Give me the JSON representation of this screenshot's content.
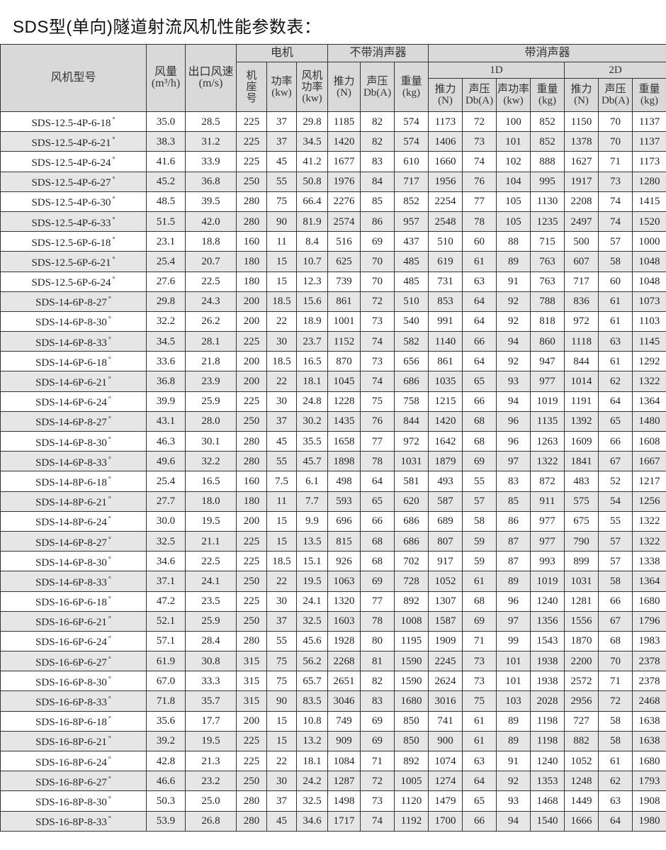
{
  "title": "SDS型(单向)隧道射流风机性能参数表：",
  "header": {
    "model": "风机型号",
    "airflow": "风量",
    "airflow_unit": "(m³/h)",
    "outlet_speed": "出口风速",
    "outlet_speed_unit": "(m/s)",
    "motor": "电机",
    "no_silencer": "不带消声器",
    "with_silencer": "带消声器",
    "frame": "机座号",
    "power": "功率",
    "power_unit": "(kw)",
    "fan_power": "风机功率",
    "fan_power_unit": "(kw)",
    "thrust": "推力",
    "thrust_unit": "(N)",
    "sound": "声压",
    "sound_unit": "Db(A)",
    "weight": "重量",
    "weight_unit": "(kg)",
    "d1": "1D",
    "d2": "2D",
    "sound_power": "声功率",
    "sound_power_unit": "(kw)"
  },
  "degree_mark": "°",
  "rows": [
    [
      "SDS-12.5-4P-6-18",
      "35.0",
      "28.5",
      "225",
      "37",
      "29.8",
      "1185",
      "82",
      "574",
      "1173",
      "72",
      "100",
      "852",
      "1150",
      "70",
      "1137"
    ],
    [
      "SDS-12.5-4P-6-21",
      "38.3",
      "31.2",
      "225",
      "37",
      "34.5",
      "1420",
      "82",
      "574",
      "1406",
      "73",
      "101",
      "852",
      "1378",
      "70",
      "1137"
    ],
    [
      "SDS-12.5-4P-6-24",
      "41.6",
      "33.9",
      "225",
      "45",
      "41.2",
      "1677",
      "83",
      "610",
      "1660",
      "74",
      "102",
      "888",
      "1627",
      "71",
      "1173"
    ],
    [
      "SDS-12.5-4P-6-27",
      "45.2",
      "36.8",
      "250",
      "55",
      "50.8",
      "1976",
      "84",
      "717",
      "1956",
      "76",
      "104",
      "995",
      "1917",
      "73",
      "1280"
    ],
    [
      "SDS-12.5-4P-6-30",
      "48.5",
      "39.5",
      "280",
      "75",
      "66.4",
      "2276",
      "85",
      "852",
      "2254",
      "77",
      "105",
      "1130",
      "2208",
      "74",
      "1415"
    ],
    [
      "SDS-12.5-4P-6-33",
      "51.5",
      "42.0",
      "280",
      "90",
      "81.9",
      "2574",
      "86",
      "957",
      "2548",
      "78",
      "105",
      "1235",
      "2497",
      "74",
      "1520"
    ],
    [
      "SDS-12.5-6P-6-18",
      "23.1",
      "18.8",
      "160",
      "11",
      "8.4",
      "516",
      "69",
      "437",
      "510",
      "60",
      "88",
      "715",
      "500",
      "57",
      "1000"
    ],
    [
      "SDS-12.5-6P-6-21",
      "25.4",
      "20.7",
      "180",
      "15",
      "10.7",
      "625",
      "70",
      "485",
      "619",
      "61",
      "89",
      "763",
      "607",
      "58",
      "1048"
    ],
    [
      "SDS-12.5-6P-6-24",
      "27.6",
      "22.5",
      "180",
      "15",
      "12.3",
      "739",
      "70",
      "485",
      "731",
      "63",
      "91",
      "763",
      "717",
      "60",
      "1048"
    ],
    [
      "SDS-14-6P-8-27",
      "29.8",
      "24.3",
      "200",
      "18.5",
      "15.6",
      "861",
      "72",
      "510",
      "853",
      "64",
      "92",
      "788",
      "836",
      "61",
      "1073"
    ],
    [
      "SDS-14-6P-8-30",
      "32.2",
      "26.2",
      "200",
      "22",
      "18.9",
      "1001",
      "73",
      "540",
      "991",
      "64",
      "92",
      "818",
      "972",
      "61",
      "1103"
    ],
    [
      "SDS-14-6P-8-33",
      "34.5",
      "28.1",
      "225",
      "30",
      "23.7",
      "1152",
      "74",
      "582",
      "1140",
      "66",
      "94",
      "860",
      "1118",
      "63",
      "1145"
    ],
    [
      "SDS-14-6P-6-18",
      "33.6",
      "21.8",
      "200",
      "18.5",
      "16.5",
      "870",
      "73",
      "656",
      "861",
      "64",
      "92",
      "947",
      "844",
      "61",
      "1292"
    ],
    [
      "SDS-14-6P-6-21",
      "36.8",
      "23.9",
      "200",
      "22",
      "18.1",
      "1045",
      "74",
      "686",
      "1035",
      "65",
      "93",
      "977",
      "1014",
      "62",
      "1322"
    ],
    [
      "SDS-14-6P-6-24",
      "39.9",
      "25.9",
      "225",
      "30",
      "24.8",
      "1228",
      "75",
      "758",
      "1215",
      "66",
      "94",
      "1019",
      "1191",
      "64",
      "1364"
    ],
    [
      "SDS-14-6P-8-27",
      "43.1",
      "28.0",
      "250",
      "37",
      "30.2",
      "1435",
      "76",
      "844",
      "1420",
      "68",
      "96",
      "1135",
      "1392",
      "65",
      "1480"
    ],
    [
      "SDS-14-6P-8-30",
      "46.3",
      "30.1",
      "280",
      "45",
      "35.5",
      "1658",
      "77",
      "972",
      "1642",
      "68",
      "96",
      "1263",
      "1609",
      "66",
      "1608"
    ],
    [
      "SDS-14-6P-8-33",
      "49.6",
      "32.2",
      "280",
      "55",
      "45.7",
      "1898",
      "78",
      "1031",
      "1879",
      "69",
      "97",
      "1322",
      "1841",
      "67",
      "1667"
    ],
    [
      "SDS-14-8P-6-18",
      "25.4",
      "16.5",
      "160",
      "7.5",
      "6.1",
      "498",
      "64",
      "581",
      "493",
      "55",
      "83",
      "872",
      "483",
      "52",
      "1217"
    ],
    [
      "SDS-14-8P-6-21",
      "27.7",
      "18.0",
      "180",
      "11",
      "7.7",
      "593",
      "65",
      "620",
      "587",
      "57",
      "85",
      "911",
      "575",
      "54",
      "1256"
    ],
    [
      "SDS-14-8P-6-24",
      "30.0",
      "19.5",
      "200",
      "15",
      "9.9",
      "696",
      "66",
      "686",
      "689",
      "58",
      "86",
      "977",
      "675",
      "55",
      "1322"
    ],
    [
      "SDS-14-6P-8-27",
      "32.5",
      "21.1",
      "225",
      "15",
      "13.5",
      "815",
      "68",
      "686",
      "807",
      "59",
      "87",
      "977",
      "790",
      "57",
      "1322"
    ],
    [
      "SDS-14-6P-8-30",
      "34.6",
      "22.5",
      "225",
      "18.5",
      "15.1",
      "926",
      "68",
      "702",
      "917",
      "59",
      "87",
      "993",
      "899",
      "57",
      "1338"
    ],
    [
      "SDS-14-6P-8-33",
      "37.1",
      "24.1",
      "250",
      "22",
      "19.5",
      "1063",
      "69",
      "728",
      "1052",
      "61",
      "89",
      "1019",
      "1031",
      "58",
      "1364"
    ],
    [
      "SDS-16-6P-6-18",
      "47.2",
      "23.5",
      "225",
      "30",
      "24.1",
      "1320",
      "77",
      "892",
      "1307",
      "68",
      "96",
      "1240",
      "1281",
      "66",
      "1680"
    ],
    [
      "SDS-16-6P-6-21",
      "52.1",
      "25.9",
      "250",
      "37",
      "32.5",
      "1603",
      "78",
      "1008",
      "1587",
      "69",
      "97",
      "1356",
      "1556",
      "67",
      "1796"
    ],
    [
      "SDS-16-6P-6-24",
      "57.1",
      "28.4",
      "280",
      "55",
      "45.6",
      "1928",
      "80",
      "1195",
      "1909",
      "71",
      "99",
      "1543",
      "1870",
      "68",
      "1983"
    ],
    [
      "SDS-16-6P-6-27",
      "61.9",
      "30.8",
      "315",
      "75",
      "56.2",
      "2268",
      "81",
      "1590",
      "2245",
      "73",
      "101",
      "1938",
      "2200",
      "70",
      "2378"
    ],
    [
      "SDS-16-6P-8-30",
      "67.0",
      "33.3",
      "315",
      "75",
      "65.7",
      "2651",
      "82",
      "1590",
      "2624",
      "73",
      "101",
      "1938",
      "2572",
      "71",
      "2378"
    ],
    [
      "SDS-16-6P-8-33",
      "71.8",
      "35.7",
      "315",
      "90",
      "83.5",
      "3046",
      "83",
      "1680",
      "3016",
      "75",
      "103",
      "2028",
      "2956",
      "72",
      "2468"
    ],
    [
      "SDS-16-8P-6-18",
      "35.6",
      "17.7",
      "200",
      "15",
      "10.8",
      "749",
      "69",
      "850",
      "741",
      "61",
      "89",
      "1198",
      "727",
      "58",
      "1638"
    ],
    [
      "SDS-16-8P-6-21",
      "39.2",
      "19.5",
      "225",
      "15",
      "13.2",
      "909",
      "69",
      "850",
      "900",
      "61",
      "89",
      "1198",
      "882",
      "58",
      "1638"
    ],
    [
      "SDS-16-8P-6-24",
      "42.8",
      "21.3",
      "225",
      "22",
      "18.1",
      "1084",
      "71",
      "892",
      "1074",
      "63",
      "91",
      "1240",
      "1052",
      "61",
      "1680"
    ],
    [
      "SDS-16-8P-6-27",
      "46.6",
      "23.2",
      "250",
      "30",
      "24.2",
      "1287",
      "72",
      "1005",
      "1274",
      "64",
      "92",
      "1353",
      "1248",
      "62",
      "1793"
    ],
    [
      "SDS-16-8P-8-30",
      "50.3",
      "25.0",
      "280",
      "37",
      "32.5",
      "1498",
      "73",
      "1120",
      "1479",
      "65",
      "93",
      "1468",
      "1449",
      "63",
      "1908"
    ],
    [
      "SDS-16-8P-8-33",
      "53.9",
      "26.8",
      "280",
      "45",
      "34.6",
      "1717",
      "74",
      "1192",
      "1700",
      "66",
      "94",
      "1540",
      "1666",
      "64",
      "1980"
    ]
  ]
}
